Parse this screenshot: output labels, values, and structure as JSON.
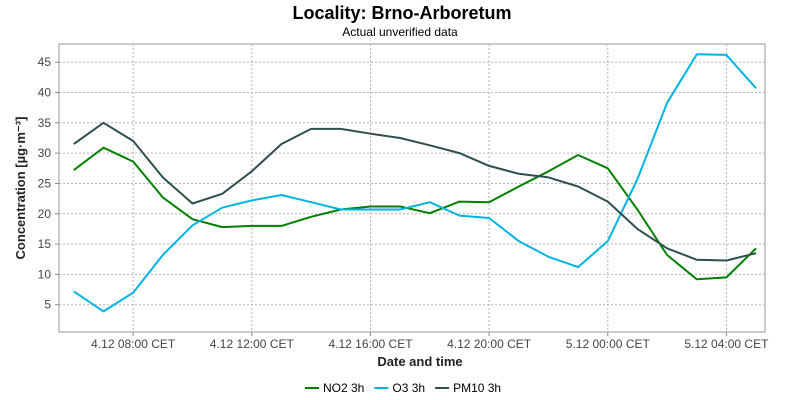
{
  "chart_data": {
    "type": "line",
    "title": "Locality: Brno-Arboretum",
    "subtitle": "Actual unverified data",
    "xlabel": "Date and time",
    "ylabel": "Concentration [µg·m⁻³]",
    "x": [
      0,
      1,
      2,
      3,
      4,
      5,
      6,
      7,
      8,
      9,
      10,
      11,
      12,
      13,
      14,
      15,
      16,
      17,
      18,
      19,
      20,
      21,
      22,
      23
    ],
    "xlim": [
      -0.5,
      23.3
    ],
    "ylim": [
      0.5,
      48
    ],
    "yticks": [
      5,
      10,
      15,
      20,
      25,
      30,
      35,
      40,
      45
    ],
    "xticks": [
      {
        "x": 2,
        "label": "4.12 08:00 CET"
      },
      {
        "x": 6,
        "label": "4.12 12:00 CET"
      },
      {
        "x": 10,
        "label": "4.12 16:00 CET"
      },
      {
        "x": 14,
        "label": "4.12 20:00 CET"
      },
      {
        "x": 18,
        "label": "5.12 00:00 CET"
      },
      {
        "x": 22,
        "label": "5.12 04:00 CET"
      }
    ],
    "grid": true,
    "legend_position": "bottom",
    "series": [
      {
        "name": "NO2 3h",
        "color": "#008000",
        "values": [
          27.2,
          30.9,
          28.6,
          22.7,
          19.1,
          17.8,
          18.0,
          18.0,
          19.5,
          20.7,
          21.2,
          21.2,
          20.1,
          22.0,
          21.9,
          24.5,
          27.0,
          29.7,
          27.5,
          20.7,
          13.2,
          9.2,
          9.5,
          14.3
        ]
      },
      {
        "name": "O3 3h",
        "color": "#00b4e6",
        "values": [
          7.2,
          3.9,
          7.0,
          13.2,
          18.1,
          21.0,
          22.2,
          23.1,
          21.9,
          20.7,
          20.7,
          20.7,
          21.9,
          19.7,
          19.3,
          15.5,
          12.9,
          11.2,
          15.5,
          25.7,
          38.3,
          46.3,
          46.2,
          40.7
        ]
      },
      {
        "name": "PM10 3h",
        "color": "#2f4f4f",
        "values": [
          31.5,
          35.0,
          32.0,
          26.0,
          21.7,
          23.3,
          27.0,
          31.5,
          34.0,
          34.0,
          33.2,
          32.5,
          31.3,
          30.0,
          27.9,
          26.6,
          26.0,
          24.5,
          22.0,
          17.5,
          14.3,
          12.4,
          12.3,
          13.5
        ]
      }
    ]
  }
}
